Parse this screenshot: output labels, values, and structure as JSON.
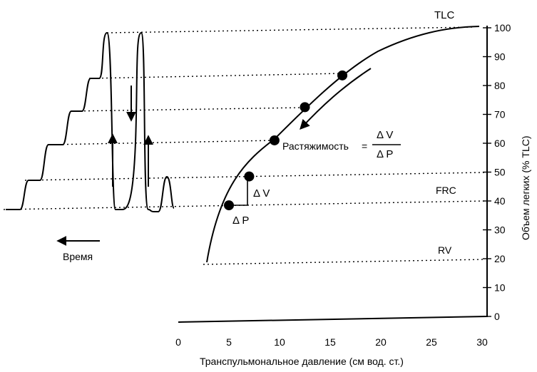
{
  "labels": {
    "tlc": "TLC",
    "frc": "FRC",
    "rv": "RV",
    "time": "Время",
    "compliance": "Растяжимость",
    "equals": "=",
    "delta_v": "Δ V",
    "delta_p": "Δ P",
    "frac_num": "Δ V",
    "frac_den": "Δ P",
    "x_axis_title": "Транспульмональное давление (см вод. ст.)",
    "y_axis_title": "Объем легких (% TLC)"
  },
  "y_ticks": [
    "0",
    "10",
    "20",
    "30",
    "40",
    "50",
    "60",
    "70",
    "80",
    "90",
    "100"
  ],
  "x_ticks": [
    "0",
    "5",
    "10",
    "15",
    "20",
    "25",
    "30"
  ],
  "curve_points": [
    {
      "p": 5,
      "v": 38.5
    },
    {
      "p": 7,
      "v": 48.5
    },
    {
      "p": 9.5,
      "v": 61
    },
    {
      "p": 12.5,
      "v": 72.5
    },
    {
      "p": 16.2,
      "v": 83.5
    }
  ]
}
